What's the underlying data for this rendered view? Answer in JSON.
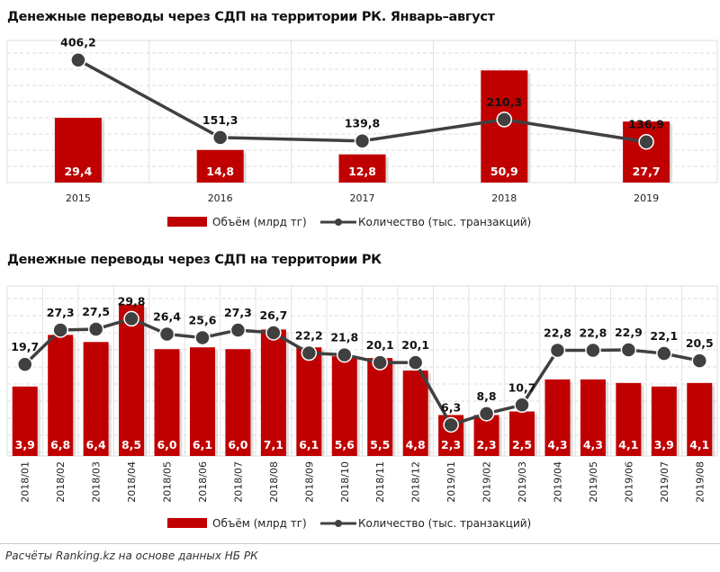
{
  "colors": {
    "bar": "#c00000",
    "line": "#404040"
  },
  "chart_data": [
    {
      "type": "bar+line",
      "title": "Денежные переводы через СДП на территории РК. Январь–август",
      "categories": [
        "2015",
        "2016",
        "2017",
        "2018",
        "2019"
      ],
      "series": [
        {
          "name": "Объём (млрд тг)",
          "type": "bar",
          "values": [
            29.4,
            14.8,
            12.8,
            50.9,
            27.7
          ],
          "labels": [
            "29,4",
            "14,8",
            "12,8",
            "50,9",
            "27,7"
          ]
        },
        {
          "name": "Количество (тыс. транзакций)",
          "type": "line",
          "values": [
            406.2,
            151.3,
            139.8,
            210.3,
            136.9
          ],
          "labels": [
            "406,2",
            "151,3",
            "139,8",
            "210,3",
            "136,9"
          ]
        }
      ],
      "grid": true,
      "legend": "bottom"
    },
    {
      "type": "bar+line",
      "title": "Денежные переводы через СДП на территории РК",
      "categories": [
        "2018/01",
        "2018/02",
        "2018/03",
        "2018/04",
        "2018/05",
        "2018/06",
        "2018/07",
        "2018/08",
        "2018/09",
        "2018/10",
        "2018/11",
        "2018/12",
        "2019/01",
        "2019/02",
        "2019/03",
        "2019/04",
        "2019/05",
        "2019/06",
        "2019/07",
        "2019/08"
      ],
      "series": [
        {
          "name": "Объём (млрд тг)",
          "type": "bar",
          "values": [
            3.9,
            6.8,
            6.4,
            8.5,
            6.0,
            6.1,
            6.0,
            7.1,
            6.1,
            5.6,
            5.5,
            4.8,
            2.3,
            2.3,
            2.5,
            4.3,
            4.3,
            4.1,
            3.9,
            4.1
          ],
          "labels": [
            "3,9",
            "6,8",
            "6,4",
            "8,5",
            "6,0",
            "6,1",
            "6,0",
            "7,1",
            "6,1",
            "5,6",
            "5,5",
            "4,8",
            "2,3",
            "2,3",
            "2,5",
            "4,3",
            "4,3",
            "4,1",
            "3,9",
            "4,1"
          ]
        },
        {
          "name": "Количество (тыс. транзакций)",
          "type": "line",
          "values": [
            19.7,
            27.3,
            27.5,
            29.8,
            26.4,
            25.6,
            27.3,
            26.7,
            22.2,
            21.8,
            20.1,
            20.1,
            6.3,
            8.8,
            10.7,
            22.8,
            22.8,
            22.9,
            22.1,
            20.5
          ],
          "labels": [
            "19,7",
            "27,3",
            "27,5",
            "29,8",
            "26,4",
            "25,6",
            "27,3",
            "26,7",
            "22,2",
            "21,8",
            "20,1",
            "20,1",
            "6,3",
            "8,8",
            "10,7",
            "22,8",
            "22,8",
            "22,9",
            "22,1",
            "20,5"
          ]
        }
      ],
      "grid": true,
      "legend": "bottom"
    }
  ],
  "footer": "Расчёты Ranking.kz на основе данных НБ РК"
}
